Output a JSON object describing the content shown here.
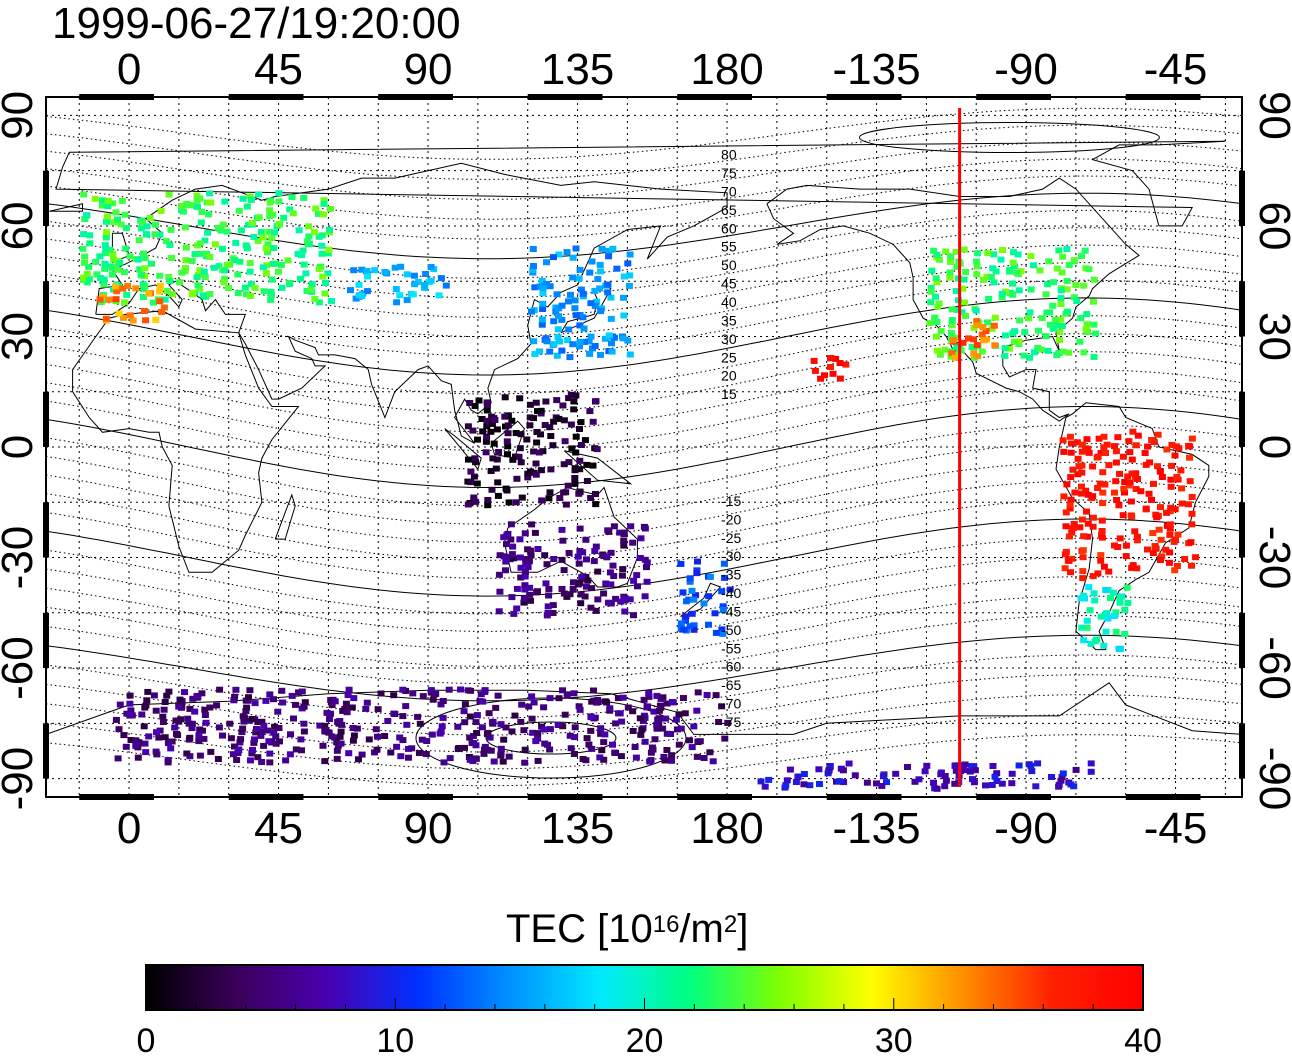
{
  "timestamp": "1999-06-27/19:20:00",
  "map": {
    "projection": "equirectangular",
    "lon_range": [
      -25,
      335
    ],
    "lat_range": [
      -95,
      95
    ],
    "grid": true,
    "lon_tick_labels_top": [
      "0",
      "45",
      "90",
      "135",
      "180",
      "-135",
      "-90",
      "-45"
    ],
    "lon_tick_labels_bottom": [
      "0",
      "45",
      "90",
      "135",
      "180",
      "-135",
      "-90",
      "-45"
    ],
    "lat_tick_labels_left": [
      "90",
      "60",
      "30",
      "0",
      "-30",
      "-60",
      "-90"
    ],
    "lat_tick_labels_right": [
      "90",
      "60",
      "30",
      "0",
      "-30",
      "-60",
      "-90"
    ],
    "meridian_marker": {
      "lon": -110,
      "color": "#ff0000"
    },
    "contour_labels_north": [
      "80",
      "75",
      "70",
      "65",
      "60",
      "55",
      "50",
      "45",
      "40",
      "35",
      "30",
      "25",
      "20",
      "15"
    ],
    "contour_labels_south": [
      "-15",
      "-20",
      "-25",
      "-30",
      "-35",
      "-40",
      "-45",
      "-50",
      "-55",
      "-60",
      "-65",
      "-70",
      "-75"
    ]
  },
  "colorbar": {
    "title_main": "TEC  [10",
    "title_exp1": "16",
    "title_mid": "/m",
    "title_exp2": "2",
    "title_end": "]",
    "min": 0,
    "max": 40,
    "tick_labels": [
      "0",
      "10",
      "20",
      "30",
      "40"
    ],
    "stops": [
      "#000000",
      "#3a005a",
      "#4800b0",
      "#0030ff",
      "#0090ff",
      "#00e8ff",
      "#00ff80",
      "#80ff00",
      "#ffff00",
      "#ff9000",
      "#ff2000",
      "#ff0000"
    ]
  },
  "chart_data": {
    "type": "heatmap",
    "title": "1999-06-27/19:20:00",
    "xlabel": "",
    "ylabel": "",
    "colorbar_label": "TEC  [10^16/m^2]",
    "value_range": [
      0,
      40
    ],
    "regions": [
      {
        "lon": [
          -15,
          60
        ],
        "lat": [
          40,
          70
        ],
        "value": 23
      },
      {
        "lon": [
          -10,
          10
        ],
        "lat": [
          35,
          45
        ],
        "value": 33
      },
      {
        "lon": [
          65,
          95
        ],
        "lat": [
          40,
          50
        ],
        "value": 16
      },
      {
        "lon": [
          120,
          150
        ],
        "lat": [
          25,
          55
        ],
        "value": 15
      },
      {
        "lon": [
          -120,
          -70
        ],
        "lat": [
          25,
          55
        ],
        "value": 23
      },
      {
        "lon": [
          -115,
          -100
        ],
        "lat": [
          25,
          35
        ],
        "value": 34
      },
      {
        "lon": [
          -155,
          -145
        ],
        "lat": [
          18,
          25
        ],
        "value": 39
      },
      {
        "lon": [
          -80,
          -40
        ],
        "lat": [
          -35,
          5
        ],
        "value": 38
      },
      {
        "lon": [
          -75,
          -60
        ],
        "lat": [
          -55,
          -35
        ],
        "value": 20
      },
      {
        "lon": [
          100,
          140
        ],
        "lat": [
          -15,
          15
        ],
        "value": 2
      },
      {
        "lon": [
          110,
          155
        ],
        "lat": [
          -45,
          -20
        ],
        "value": 5
      },
      {
        "lon": [
          165,
          180
        ],
        "lat": [
          -50,
          -30
        ],
        "value": 12
      },
      {
        "lon": [
          -5,
          180
        ],
        "lat": [
          -85,
          -65
        ],
        "value": 5
      },
      {
        "lon": [
          -175,
          -70
        ],
        "lat": [
          -92,
          -85
        ],
        "value": 8
      }
    ]
  }
}
